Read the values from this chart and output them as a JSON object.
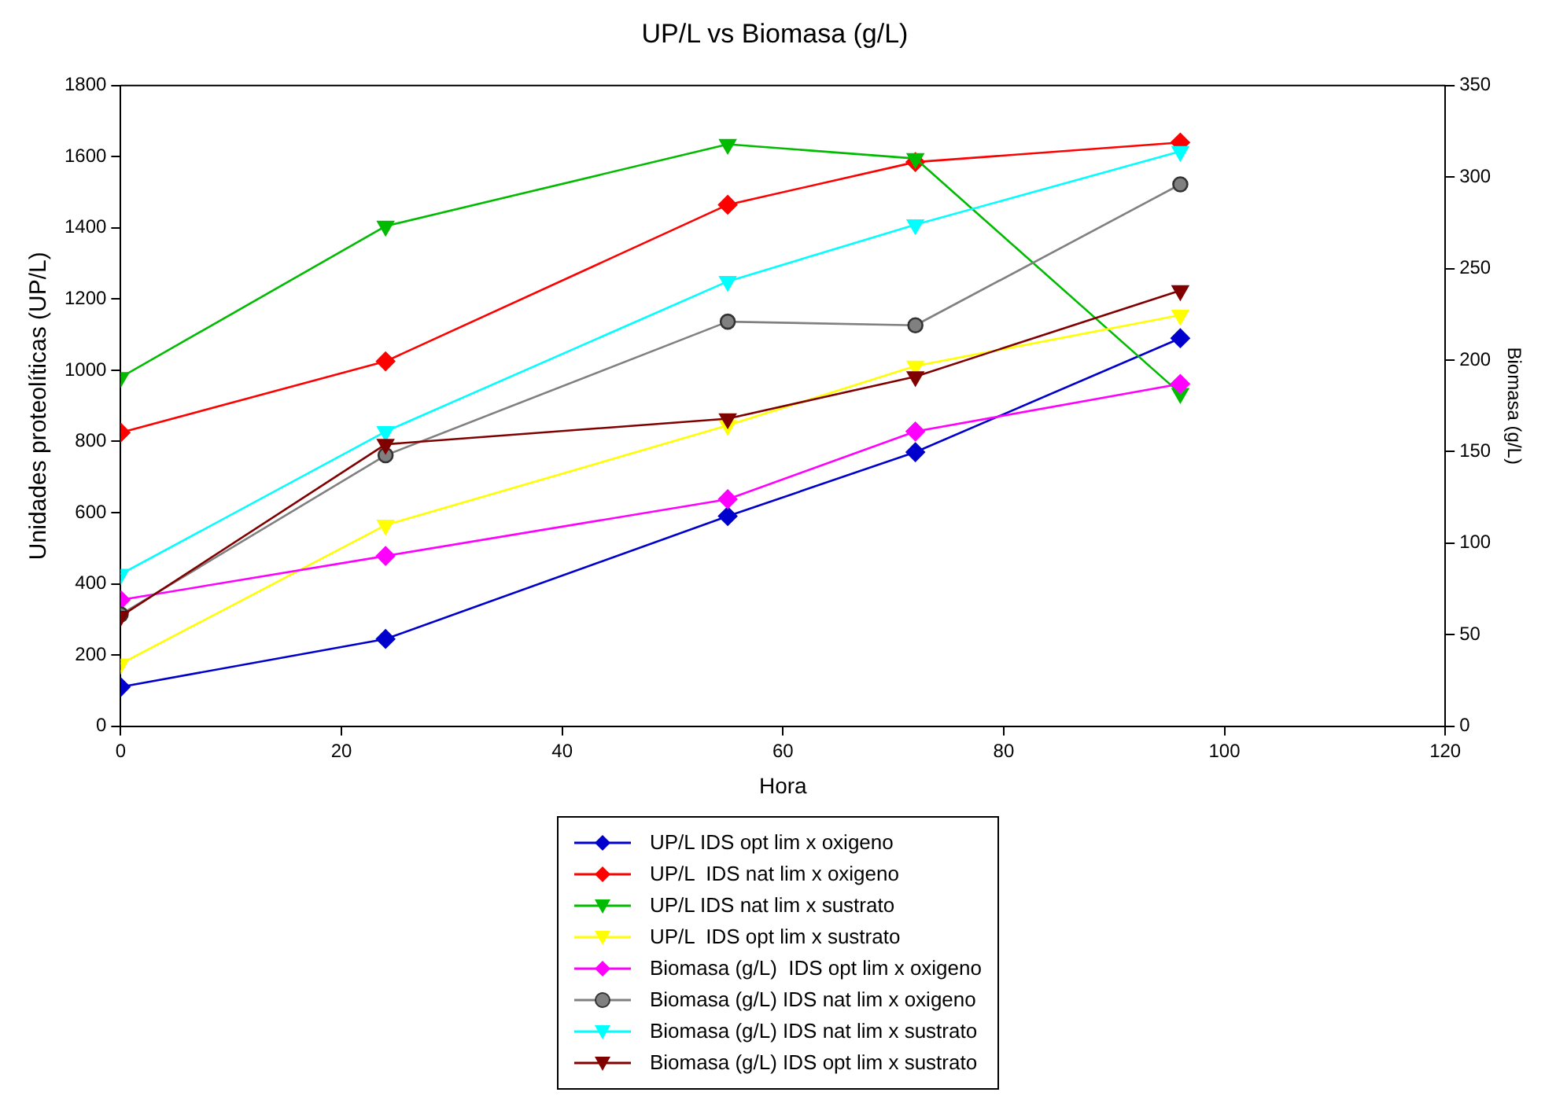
{
  "chart_data": {
    "type": "line",
    "title": "UP/L vs Biomasa (g/L)",
    "xlabel": "Hora",
    "ylabel": "Unidades proteolíticas (UP/L)",
    "y2label": "Biomasa (g/L)",
    "x": [
      0,
      24,
      55,
      72,
      96
    ],
    "xlim": [
      0,
      120
    ],
    "xticks": [
      0,
      20,
      40,
      60,
      80,
      100,
      120
    ],
    "ylim": [
      0,
      1800
    ],
    "yticks": [
      0,
      200,
      400,
      600,
      800,
      1000,
      1200,
      1400,
      1600,
      1800
    ],
    "y2lim": [
      0,
      350
    ],
    "y2ticks": [
      0,
      50,
      100,
      150,
      200,
      250,
      300,
      350
    ],
    "grid": false,
    "legend": "bottom",
    "line_style": "solid",
    "series": [
      {
        "name": "UP/L IDS opt lim x oxigeno",
        "color": "#0000cc",
        "marker": "diamond",
        "values": [
          110,
          245,
          590,
          770,
          1090
        ]
      },
      {
        "name": "UP/L  IDS nat lim x oxigeno",
        "color": "#ff0000",
        "marker": "diamond",
        "values": [
          825,
          1025,
          1465,
          1585,
          1640
        ]
      },
      {
        "name": "UP/L IDS nat lim x sustrato",
        "color": "#00bb00",
        "marker": "triangle",
        "values": [
          980,
          1405,
          1635,
          1595,
          935
        ]
      },
      {
        "name": "UP/L  IDS opt lim x sustrato",
        "color": "#ffff00",
        "marker": "triangle",
        "values": [
          175,
          565,
          845,
          1012,
          1155
        ]
      },
      {
        "name": "Biomasa (g/L)  IDS opt lim x oxigeno",
        "color": "#ff00ff",
        "marker": "diamond",
        "axis": "y2",
        "values": [
          69,
          93,
          124,
          161,
          187
        ]
      },
      {
        "name": "Biomasa (g/L) IDS nat lim x oxigeno",
        "color": "#808080",
        "marker": "circle",
        "axis": "y2",
        "values": [
          61,
          148,
          221,
          219,
          296
        ]
      },
      {
        "name": "Biomasa (g/L) IDS nat lim x sustrato",
        "color": "#00ffff",
        "marker": "triangle",
        "axis": "y2",
        "values": [
          83,
          161,
          243,
          274,
          314
        ]
      },
      {
        "name": "Biomasa (g/L) IDS opt lim x sustrato",
        "color": "#800000",
        "marker": "triangle",
        "axis": "y2",
        "values": [
          60,
          154,
          168,
          191,
          238
        ]
      }
    ]
  }
}
